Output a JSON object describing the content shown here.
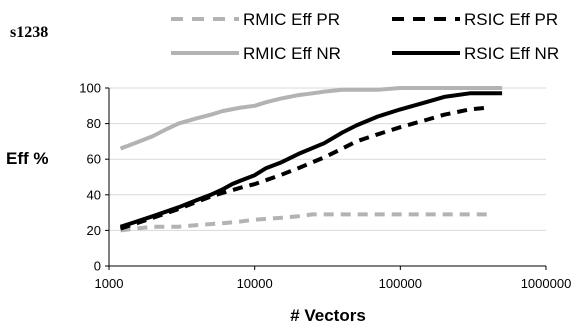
{
  "chart_data": {
    "type": "line",
    "title": "s1238",
    "xlabel": "# Vectors",
    "ylabel": "Eff %",
    "x_scale": "log",
    "xlim": [
      1000,
      1000000
    ],
    "ylim": [
      0,
      100
    ],
    "x_ticks": [
      "1000",
      "10000",
      "100000",
      "1000000"
    ],
    "y_ticks": [
      "0",
      "20",
      "40",
      "60",
      "80",
      "100"
    ],
    "grid": "horizontal",
    "legend_position": "top-right",
    "series": [
      {
        "name": "RMIC Eff PR",
        "color": "#b3b3b3",
        "style": "dashed",
        "x": [
          1200,
          1500,
          2000,
          3000,
          4000,
          6000,
          8000,
          10000,
          15000,
          20000,
          25000,
          30000,
          50000,
          100000,
          200000,
          300000,
          400000
        ],
        "y": [
          20,
          21,
          22,
          22,
          23,
          24,
          25,
          26,
          27,
          28,
          29,
          29,
          29,
          29,
          29,
          29,
          29
        ]
      },
      {
        "name": "RSIC Eff PR",
        "color": "#000000",
        "style": "dashed",
        "x": [
          1200,
          2000,
          3000,
          4000,
          5000,
          6000,
          8000,
          10000,
          15000,
          20000,
          30000,
          40000,
          50000,
          70000,
          100000,
          150000,
          200000,
          300000,
          400000
        ],
        "y": [
          21,
          27,
          32,
          36,
          39,
          41,
          44,
          46,
          51,
          55,
          61,
          66,
          70,
          74,
          78,
          82,
          85,
          88,
          89
        ]
      },
      {
        "name": "RMIC Eff NR",
        "color": "#b3b3b3",
        "style": "solid",
        "x": [
          1200,
          1500,
          2000,
          2500,
          3000,
          4000,
          5000,
          6000,
          8000,
          10000,
          12000,
          15000,
          20000,
          25000,
          30000,
          40000,
          50000,
          70000,
          100000,
          200000,
          500000
        ],
        "y": [
          66,
          69,
          73,
          77,
          80,
          83,
          85,
          87,
          89,
          90,
          92,
          94,
          96,
          97,
          98,
          99,
          99,
          99,
          100,
          100,
          100
        ]
      },
      {
        "name": "RSIC Eff NR",
        "color": "#000000",
        "style": "solid",
        "x": [
          1200,
          2000,
          3000,
          4000,
          5000,
          6000,
          7000,
          8000,
          10000,
          12000,
          15000,
          20000,
          30000,
          40000,
          50000,
          70000,
          100000,
          150000,
          200000,
          300000,
          500000
        ],
        "y": [
          22,
          28,
          33,
          37,
          40,
          43,
          46,
          48,
          51,
          55,
          58,
          63,
          69,
          75,
          79,
          84,
          88,
          92,
          95,
          97,
          97
        ]
      }
    ]
  }
}
